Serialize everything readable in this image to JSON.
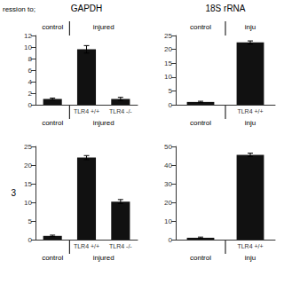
{
  "chart_data": [
    {
      "type": "bar",
      "title": "GAPDH",
      "annotations": [
        "ression to;"
      ],
      "categories": [
        null,
        "TLR4 +/+",
        "TLR4 -/-"
      ],
      "groups": [
        {
          "name": "control",
          "size": 1
        },
        {
          "name": "injured",
          "size": 2
        }
      ],
      "group_headers": [
        "control",
        "injured"
      ],
      "values": [
        1.0,
        9.6,
        1.0
      ],
      "errors": [
        0.15,
        0.65,
        0.28
      ],
      "color": "#111111",
      "ylim": [
        0,
        12
      ],
      "yticks": [
        0,
        2,
        4,
        6,
        8,
        10,
        12
      ],
      "grid": false
    },
    {
      "type": "bar",
      "title": "18S rRNA",
      "categories": [
        null,
        "TLR4 +/+"
      ],
      "groups": [
        {
          "name": "control",
          "size": 1
        },
        {
          "name": "inju",
          "size": 1
        }
      ],
      "group_headers": [
        "control",
        "inju"
      ],
      "values": [
        1.0,
        22.5
      ],
      "errors": [
        0.25,
        0.55
      ],
      "color": "#111111",
      "ylim": [
        0,
        25
      ],
      "yticks": [
        0,
        5,
        10,
        15,
        20,
        25
      ],
      "grid": false
    },
    {
      "type": "bar",
      "ylabel": "3",
      "categories": [
        null,
        "TLR4 +/+",
        "TLR4 -/-"
      ],
      "groups": [
        {
          "name": "control",
          "size": 1
        },
        {
          "name": "injured",
          "size": 2
        }
      ],
      "values": [
        1.0,
        22.0,
        10.2
      ],
      "errors": [
        0.2,
        0.55,
        0.55
      ],
      "color": "#111111",
      "ylim": [
        0,
        25
      ],
      "yticks": [
        0,
        5,
        10,
        15,
        20,
        25
      ],
      "grid": false
    },
    {
      "type": "bar",
      "categories": [
        null,
        "TLR4 +/+"
      ],
      "groups": [
        {
          "name": "control",
          "size": 1
        },
        {
          "name": "inju",
          "size": 1
        }
      ],
      "values": [
        1.0,
        45.5
      ],
      "errors": [
        0.35,
        0.9
      ],
      "color": "#111111",
      "ylim": [
        0,
        50
      ],
      "yticks": [
        0,
        10,
        20,
        30,
        40,
        50
      ],
      "grid": false
    }
  ]
}
